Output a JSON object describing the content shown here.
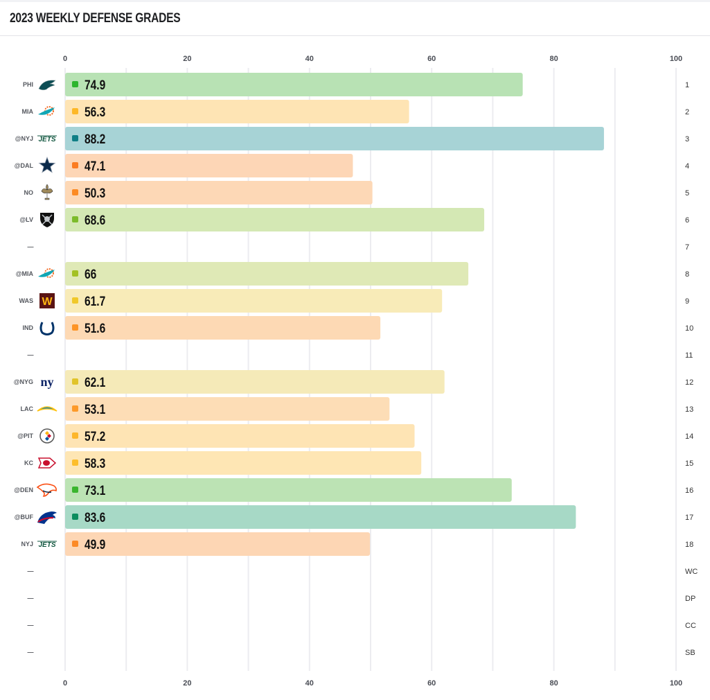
{
  "header": {
    "title": "2023 WEEKLY DEFENSE GRADES"
  },
  "chart_data": {
    "type": "bar",
    "orientation": "horizontal",
    "title": "2023 WEEKLY DEFENSE GRADES",
    "xlim": [
      0,
      100
    ],
    "xticks": [
      0,
      20,
      40,
      60,
      80,
      100
    ],
    "grid": true,
    "xaxis_labels_position": "top-and-bottom",
    "rows": [
      {
        "week": "1",
        "opponent": "PHI",
        "logo": "eagles-logo",
        "value": 74.9,
        "bar_color": "#b8e2b4",
        "dot_color": "#2db52d"
      },
      {
        "week": "2",
        "opponent": "MIA",
        "logo": "dolphins-logo",
        "value": 56.3,
        "bar_color": "#fee4b4",
        "dot_color": "#fdb828"
      },
      {
        "week": "3",
        "opponent": "@NYJ",
        "logo": "jets-logo",
        "value": 88.2,
        "bar_color": "#a7d3d6",
        "dot_color": "#0f7f86"
      },
      {
        "week": "4",
        "opponent": "@DAL",
        "logo": "cowboys-logo",
        "value": 47.1,
        "bar_color": "#fdd6b6",
        "dot_color": "#fb7c22"
      },
      {
        "week": "5",
        "opponent": "NO",
        "logo": "saints-logo",
        "value": 50.3,
        "bar_color": "#fdd8b6",
        "dot_color": "#fc8b24"
      },
      {
        "week": "6",
        "opponent": "@LV",
        "logo": "raiders-logo",
        "value": 68.6,
        "bar_color": "#d4e8b4",
        "dot_color": "#7cbb2b"
      },
      {
        "week": "7",
        "opponent": "—",
        "logo": null,
        "value": null
      },
      {
        "week": "8",
        "opponent": "@MIA",
        "logo": "dolphins-logo",
        "value": 66,
        "bar_color": "#dfe9b6",
        "dot_color": "#a3c124"
      },
      {
        "week": "9",
        "opponent": "WAS",
        "logo": "commanders-logo",
        "value": 61.7,
        "bar_color": "#f8ebb8",
        "dot_color": "#f0c82a"
      },
      {
        "week": "10",
        "opponent": "IND",
        "logo": "colts-logo",
        "value": 51.6,
        "bar_color": "#fdd9b4",
        "dot_color": "#fd9426"
      },
      {
        "week": "11",
        "opponent": "—",
        "logo": null,
        "value": null
      },
      {
        "week": "12",
        "opponent": "@NYG",
        "logo": "giants-logo",
        "value": 62.1,
        "bar_color": "#f5eab8",
        "dot_color": "#e1c42a"
      },
      {
        "week": "13",
        "opponent": "LAC",
        "logo": "chargers-logo",
        "value": 53.1,
        "bar_color": "#fdddb6",
        "dot_color": "#fd9a2a"
      },
      {
        "week": "14",
        "opponent": "@PIT",
        "logo": "steelers-logo",
        "value": 57.2,
        "bar_color": "#fee4b4",
        "dot_color": "#fdb62a"
      },
      {
        "week": "15",
        "opponent": "KC",
        "logo": "chiefs-logo",
        "value": 58.3,
        "bar_color": "#fee6b4",
        "dot_color": "#fdbe2a"
      },
      {
        "week": "16",
        "opponent": "@DEN",
        "logo": "broncos-logo",
        "value": 73.1,
        "bar_color": "#bce3b4",
        "dot_color": "#3ab52e"
      },
      {
        "week": "17",
        "opponent": "@BUF",
        "logo": "bills-logo",
        "value": 83.6,
        "bar_color": "#a7d9c6",
        "dot_color": "#0c8c5e"
      },
      {
        "week": "18",
        "opponent": "NYJ",
        "logo": "jets-logo",
        "value": 49.9,
        "bar_color": "#fdd6b4",
        "dot_color": "#fc8a26"
      },
      {
        "week": "WC",
        "opponent": "—",
        "logo": null,
        "value": null
      },
      {
        "week": "DP",
        "opponent": "—",
        "logo": null,
        "value": null
      },
      {
        "week": "CC",
        "opponent": "—",
        "logo": null,
        "value": null
      },
      {
        "week": "SB",
        "opponent": "—",
        "logo": null,
        "value": null
      }
    ]
  }
}
